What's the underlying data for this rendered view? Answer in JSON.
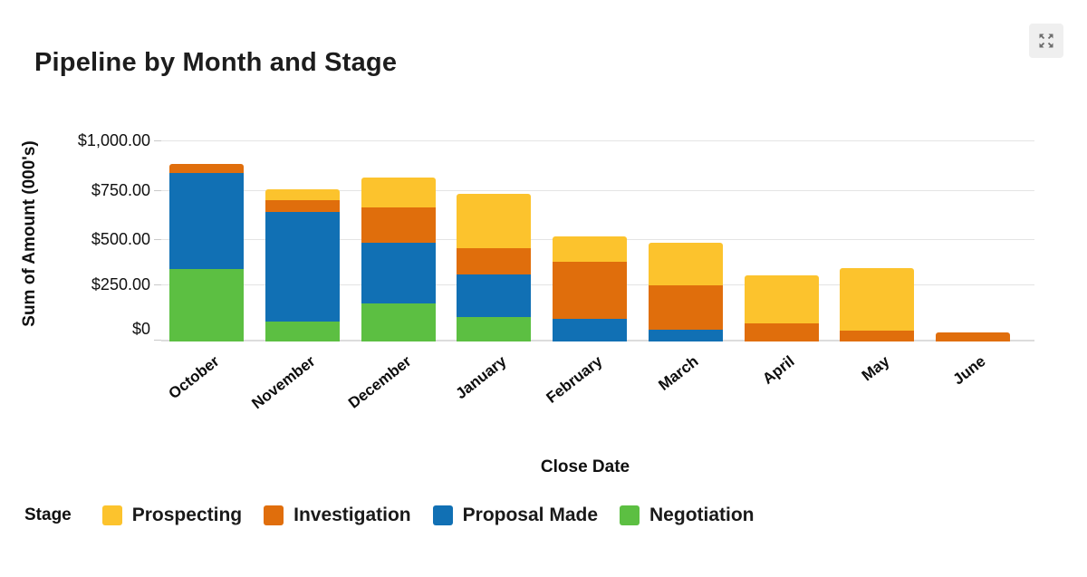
{
  "title": "Pipeline by Month and Stage",
  "toolbar": {
    "expand_icon": "expand-icon"
  },
  "chart_data": {
    "type": "bar",
    "stacked": true,
    "title": "Pipeline by Month and Stage",
    "xlabel": "Close Date",
    "ylabel": "Sum of Amount (000's)",
    "categories": [
      "October",
      "November",
      "December",
      "January",
      "February",
      "March",
      "April",
      "May",
      "June"
    ],
    "series": [
      {
        "name": "Negotiation",
        "color": "#5CBF42",
        "values": [
          360,
          100,
          190,
          120,
          0,
          0,
          0,
          0,
          0
        ]
      },
      {
        "name": "Proposal Made",
        "color": "#1170B4",
        "values": [
          480,
          545,
          300,
          215,
          115,
          60,
          0,
          0,
          0
        ]
      },
      {
        "name": "Investigation",
        "color": "#E06E0C",
        "values": [
          45,
          60,
          175,
          130,
          280,
          220,
          90,
          55,
          45
        ]
      },
      {
        "name": "Prospecting",
        "color": "#FCC32D",
        "values": [
          0,
          50,
          150,
          270,
          130,
          210,
          240,
          310,
          0
        ]
      }
    ],
    "totals": [
      885,
      755,
      815,
      735,
      525,
      490,
      330,
      365,
      45
    ],
    "ylim": [
      0,
      1000
    ],
    "y_ticks": [
      "$1,000.00",
      "$750.00",
      "$500.00",
      "$250.00",
      "$0"
    ],
    "grid": "horizontal",
    "legend_title": "Stage",
    "legend_order": [
      "Prospecting",
      "Investigation",
      "Proposal Made",
      "Negotiation"
    ],
    "legend_position": "bottom"
  }
}
